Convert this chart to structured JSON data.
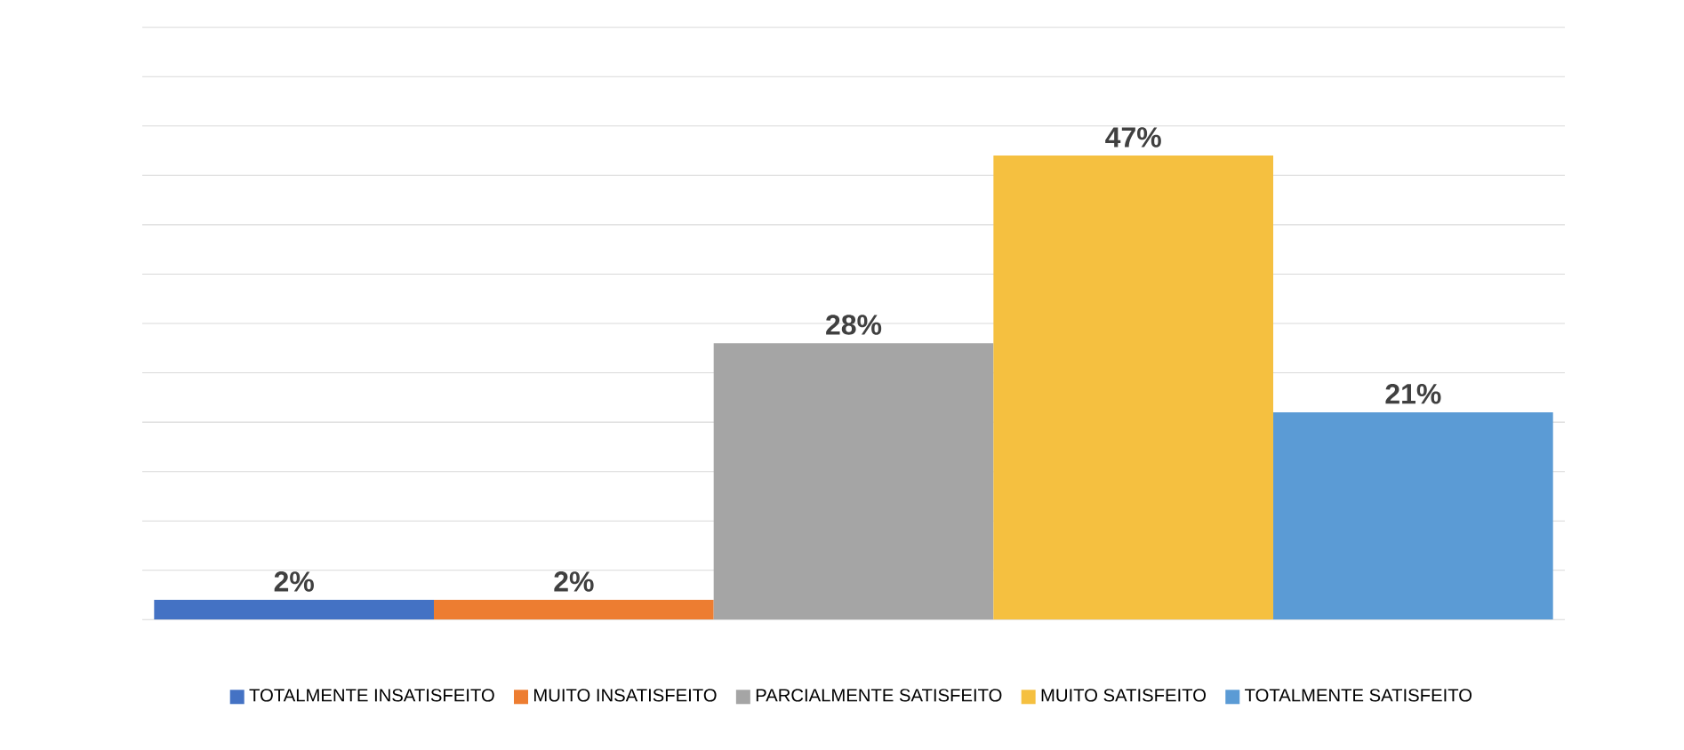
{
  "chart_data": {
    "type": "bar",
    "categories": [
      null
    ],
    "series": [
      {
        "name": "TOTALMENTE INSATISFEITO",
        "color": "#4472c4",
        "values": [
          2
        ],
        "value_labels": [
          "2%"
        ]
      },
      {
        "name": "MUITO INSATISFEITO",
        "color": "#ed7d31",
        "values": [
          2
        ],
        "value_labels": [
          "2%"
        ]
      },
      {
        "name": "PARCIALMENTE SATISFEITO",
        "color": "#a5a5a5",
        "values": [
          28
        ],
        "value_labels": [
          "28%"
        ]
      },
      {
        "name": "MUITO SATISFEITO",
        "color": "#f5c040",
        "values": [
          47
        ],
        "value_labels": [
          "47%"
        ]
      },
      {
        "name": "TOTALMENTE SATISFEITO",
        "color": "#5b9bd5",
        "values": [
          21
        ],
        "value_labels": [
          "21%"
        ]
      }
    ],
    "ylim": [
      0,
      60
    ],
    "yticks": [
      {
        "value": 0,
        "label": null
      },
      {
        "value": 5,
        "label": null
      },
      {
        "value": 10,
        "label": null
      },
      {
        "value": 15,
        "label": null
      },
      {
        "value": 20,
        "label": null
      },
      {
        "value": 25,
        "label": null
      },
      {
        "value": 30,
        "label": null
      },
      {
        "value": 35,
        "label": null
      },
      {
        "value": 40,
        "label": null
      },
      {
        "value": 45,
        "label": null
      },
      {
        "value": 50,
        "label": null
      },
      {
        "value": 55,
        "label": null
      },
      {
        "value": 60,
        "label": null
      }
    ],
    "grid": "y",
    "legend": "bottom"
  }
}
